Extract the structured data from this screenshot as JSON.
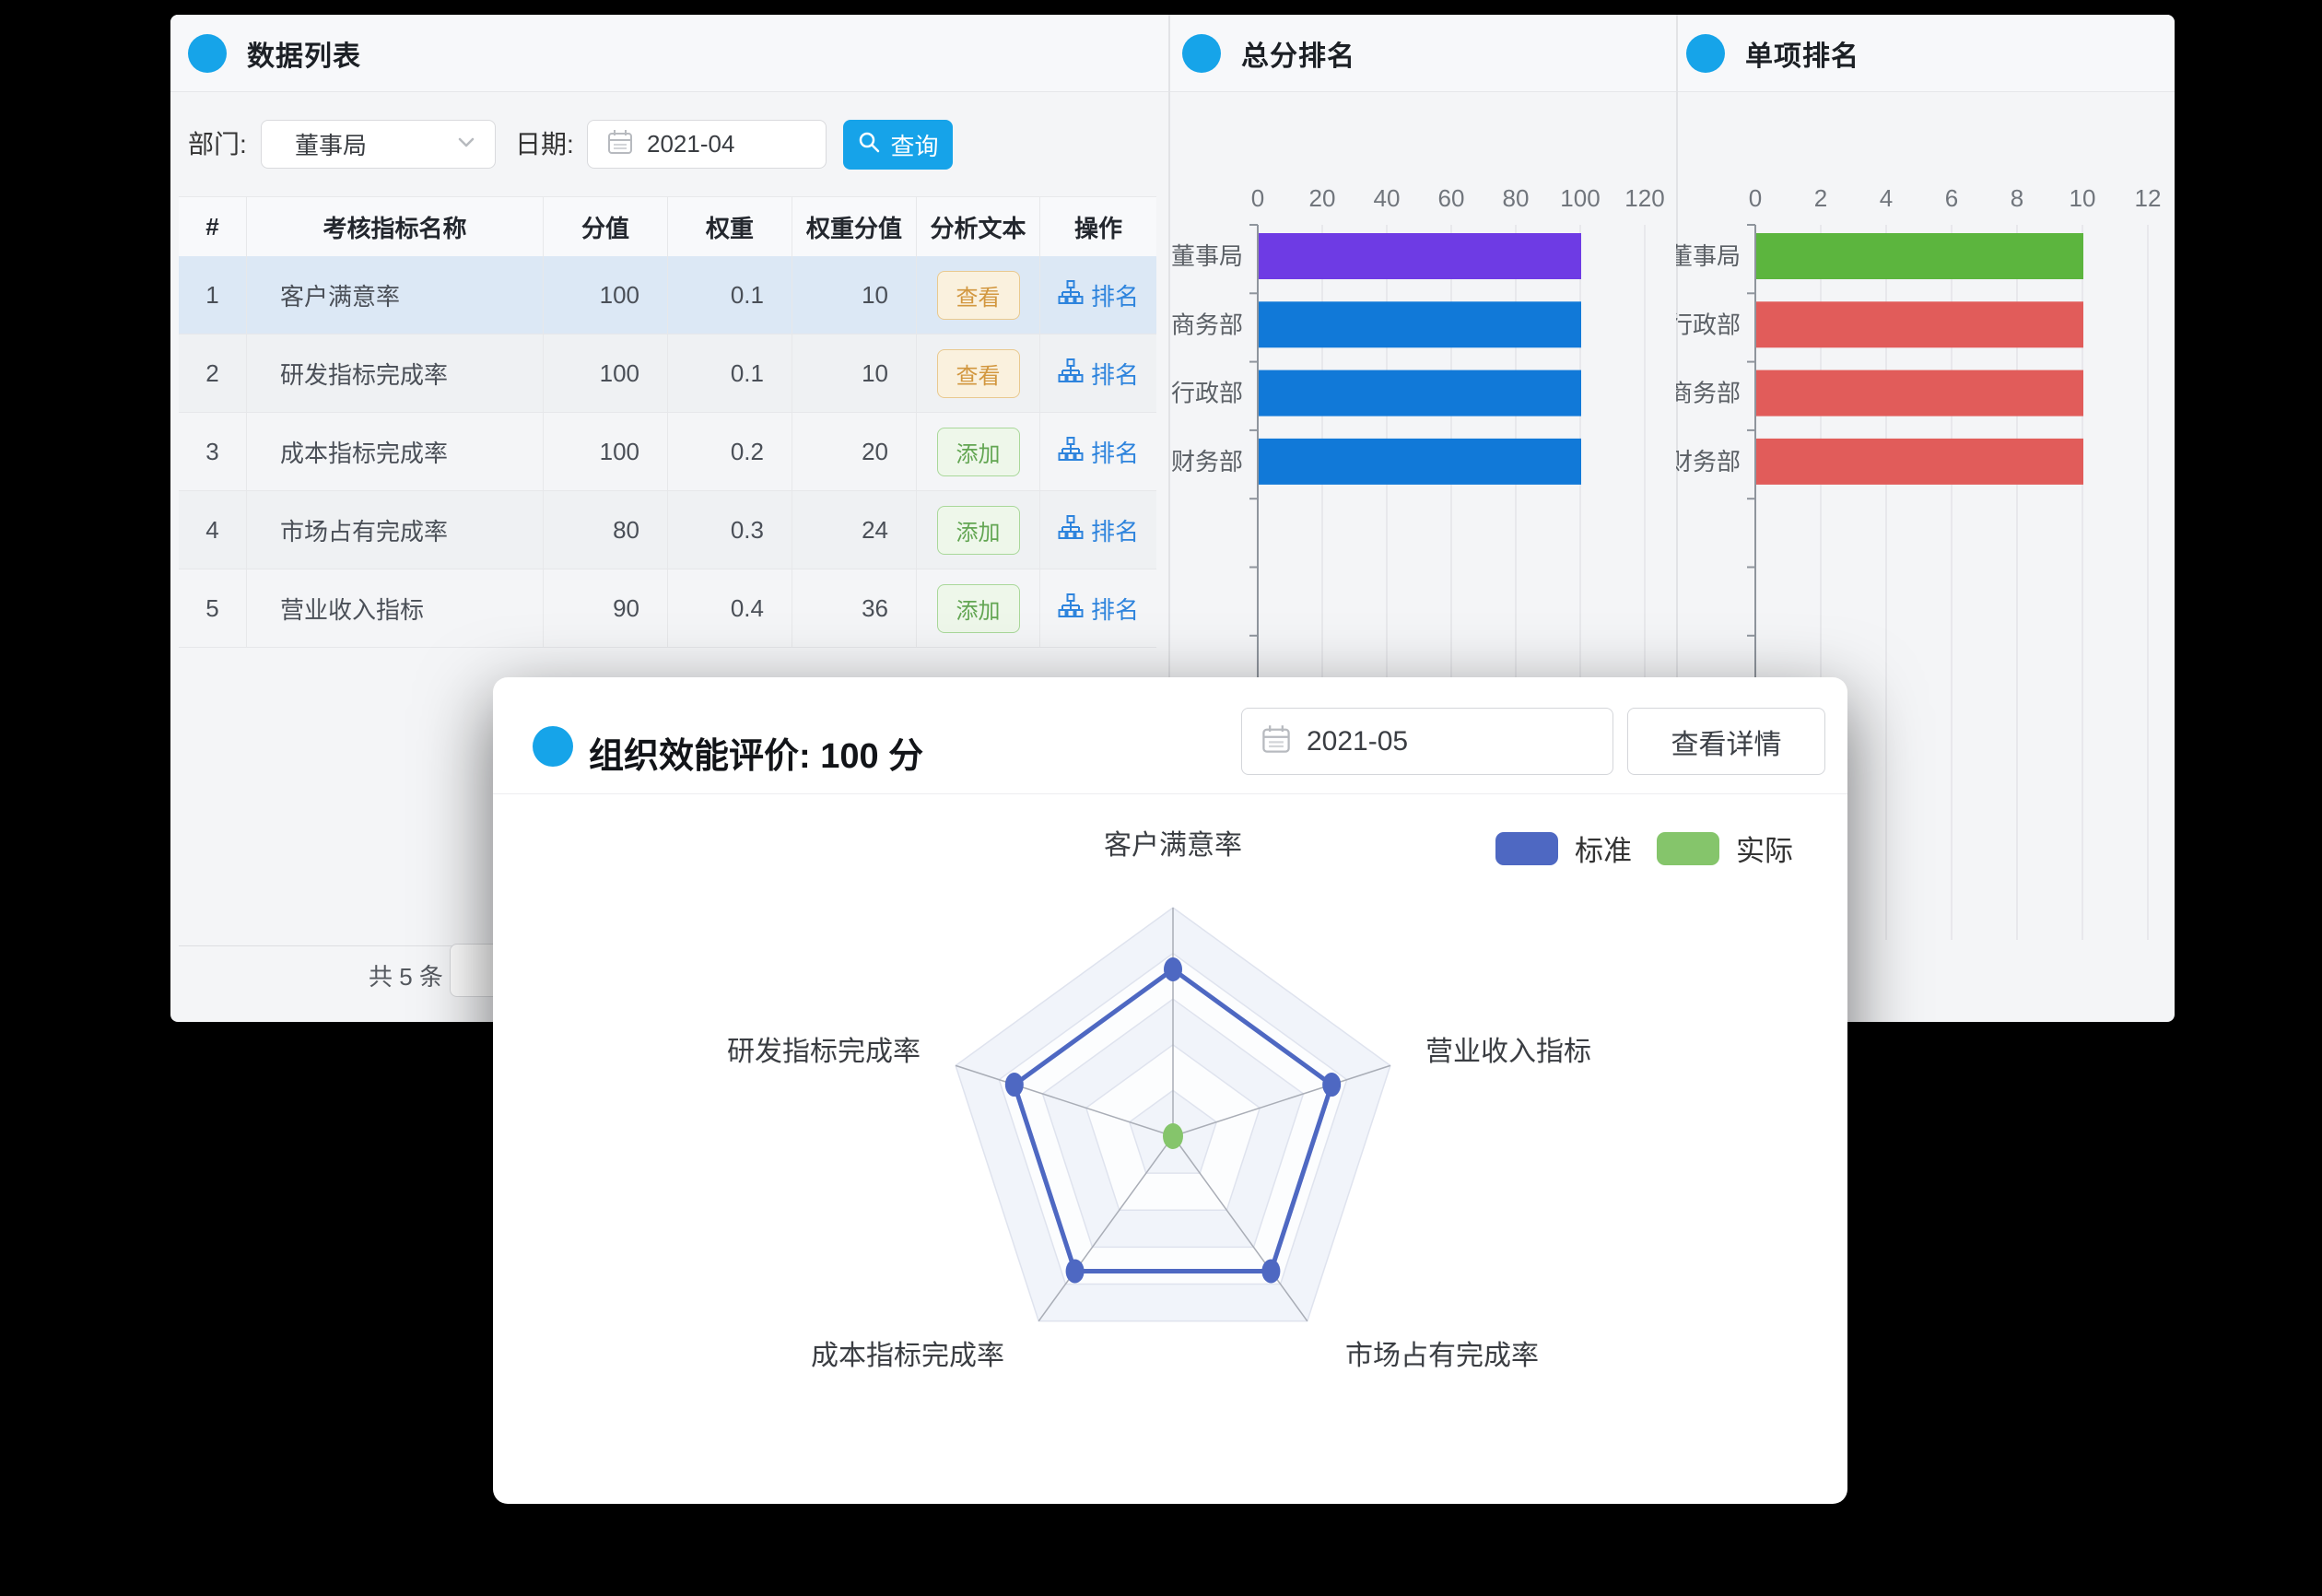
{
  "panels": {
    "data_list": {
      "title": "数据列表",
      "filters": {
        "dept_label": "部门:",
        "dept_value": "董事局",
        "date_label": "日期:",
        "date_value": "2021-04",
        "search_label": "查询"
      },
      "table": {
        "headers": [
          "#",
          "考核指标名称",
          "分值",
          "权重",
          "权重分值",
          "分析文本",
          "操作"
        ],
        "rows": [
          {
            "idx": "1",
            "name": "客户满意率",
            "score": "100",
            "weight": "0.1",
            "weighted": "10",
            "analysis": "查看",
            "analysis_type": "view",
            "op": "排名"
          },
          {
            "idx": "2",
            "name": "研发指标完成率",
            "score": "100",
            "weight": "0.1",
            "weighted": "10",
            "analysis": "查看",
            "analysis_type": "view",
            "op": "排名"
          },
          {
            "idx": "3",
            "name": "成本指标完成率",
            "score": "100",
            "weight": "0.2",
            "weighted": "20",
            "analysis": "添加",
            "analysis_type": "add",
            "op": "排名"
          },
          {
            "idx": "4",
            "name": "市场占有完成率",
            "score": "80",
            "weight": "0.3",
            "weighted": "24",
            "analysis": "添加",
            "analysis_type": "add",
            "op": "排名"
          },
          {
            "idx": "5",
            "name": "营业收入指标",
            "score": "90",
            "weight": "0.4",
            "weighted": "36",
            "analysis": "添加",
            "analysis_type": "add",
            "op": "排名"
          }
        ]
      },
      "pagination": {
        "total": "共 5 条"
      }
    },
    "total_ranking": {
      "title": "总分排名"
    },
    "item_ranking": {
      "title": "单项排名"
    }
  },
  "modal": {
    "title": "组织效能评价: 100 分",
    "date_value": "2021-05",
    "detail_button": "查看详情",
    "legend": [
      {
        "label": "标准",
        "color": "#4E68C2"
      },
      {
        "label": "实际",
        "color": "#85C56B"
      }
    ]
  },
  "chart_data": [
    {
      "id": "total-ranking",
      "type": "bar",
      "orientation": "horizontal",
      "title": "总分排名",
      "categories": [
        "董事局",
        "商务部",
        "行政部",
        "财务部"
      ],
      "values": [
        100,
        100,
        100,
        100
      ],
      "bar_colors": [
        "#6E3BE4",
        "#1179D8",
        "#1179D8",
        "#1179D8"
      ],
      "xlim": [
        0,
        120
      ],
      "ticks": [
        0,
        20,
        40,
        60,
        80,
        100,
        120
      ],
      "grid": true
    },
    {
      "id": "item-ranking",
      "type": "bar",
      "orientation": "horizontal",
      "title": "单项排名",
      "categories": [
        "董事局",
        "行政部",
        "商务部",
        "财务部"
      ],
      "values": [
        10,
        10,
        10,
        10
      ],
      "bar_colors": [
        "#5CB53E",
        "#E15C5A",
        "#E15C5A",
        "#E15C5A"
      ],
      "xlim": [
        0,
        12
      ],
      "ticks": [
        0,
        2,
        4,
        6,
        8,
        10,
        12
      ],
      "grid": true
    },
    {
      "id": "radar",
      "type": "radar",
      "title": "组织效能评价: 100 分",
      "indicators": [
        "客户满意率",
        "营业收入指标",
        "市场占有完成率",
        "成本指标完成率",
        "研发指标完成率"
      ],
      "rings": 5,
      "legend_position": "top-right",
      "series": [
        {
          "name": "标准",
          "color": "#4E68C2",
          "values_fraction": [
            0.73,
            0.73,
            0.73,
            0.73,
            0.73
          ]
        },
        {
          "name": "实际",
          "color": "#85C56B",
          "values_fraction": [
            0,
            0,
            0,
            0,
            0
          ]
        }
      ]
    }
  ]
}
